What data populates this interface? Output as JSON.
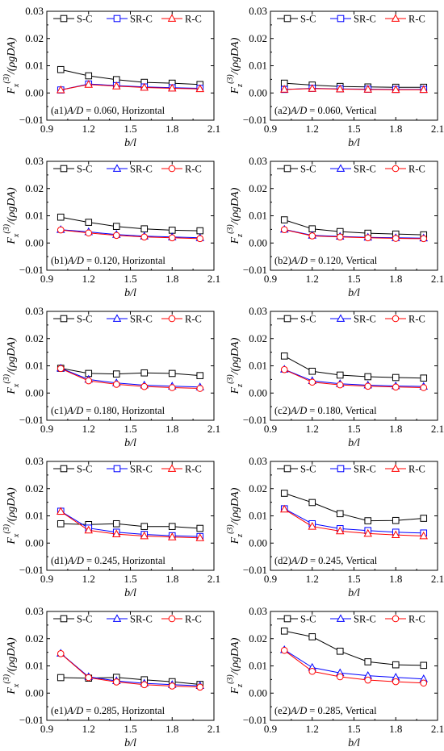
{
  "chart_data": [
    {
      "id": "a1",
      "type": "line",
      "caption_prefix": "(a1)",
      "ratio_label": "A/D",
      "ratio_value": "= 0.060,",
      "direction": "Horizontal",
      "component": "x",
      "xlabel": "b/l",
      "ylabel_main": "F",
      "ylabel_sup": "(3)",
      "ylabel_tail": "/(ρgDA)",
      "xlim": [
        0.9,
        2.1
      ],
      "ylim": [
        -0.01,
        0.03
      ],
      "xticks": [
        "0.9",
        "1.2",
        "1.5",
        "1.8",
        "2.1"
      ],
      "yticks": [
        "−0.01",
        "0.00",
        "0.01",
        "0.02",
        "0.03"
      ],
      "x": [
        1.0,
        1.2,
        1.4,
        1.6,
        1.8,
        2.0
      ],
      "series": [
        {
          "name": "S-C",
          "color": "#000000",
          "marker": "square",
          "values": [
            0.0086,
            0.0063,
            0.0049,
            0.0039,
            0.0036,
            0.0031
          ]
        },
        {
          "name": "SR-C",
          "color": "#0000ff",
          "marker": "square",
          "values": [
            0.0011,
            0.0033,
            0.0027,
            0.0022,
            0.0019,
            0.0017
          ]
        },
        {
          "name": "R-C",
          "color": "#ff0000",
          "marker": "triangle",
          "values": [
            0.0011,
            0.0031,
            0.0025,
            0.002,
            0.0017,
            0.0015
          ]
        }
      ]
    },
    {
      "id": "a2",
      "type": "line",
      "caption_prefix": "(a2)",
      "ratio_label": "A/D",
      "ratio_value": "= 0.060,",
      "direction": "Vertical",
      "component": "z",
      "xlabel": "b/l",
      "ylabel_main": "F",
      "ylabel_sup": "(3)",
      "ylabel_tail": "/(ρgDA)",
      "xlim": [
        0.9,
        2.1
      ],
      "ylim": [
        -0.01,
        0.03
      ],
      "xticks": [
        "0.9",
        "1.2",
        "1.5",
        "1.8",
        "2.1"
      ],
      "yticks": [
        "−0.01",
        "0.00",
        "0.01",
        "0.02",
        "0.03"
      ],
      "x": [
        1.0,
        1.2,
        1.4,
        1.6,
        1.8,
        2.0
      ],
      "series": [
        {
          "name": "S-C",
          "color": "#000000",
          "marker": "square",
          "values": [
            0.0036,
            0.0029,
            0.0024,
            0.0022,
            0.0021,
            0.0021
          ]
        },
        {
          "name": "SR-C",
          "color": "#0000ff",
          "marker": "square",
          "values": [
            0.0013,
            0.0017,
            0.0015,
            0.0014,
            0.0013,
            0.0013
          ]
        },
        {
          "name": "R-C",
          "color": "#ff0000",
          "marker": "triangle",
          "values": [
            0.0013,
            0.0016,
            0.0014,
            0.0013,
            0.0012,
            0.0012
          ]
        }
      ]
    },
    {
      "id": "b1",
      "type": "line",
      "caption_prefix": "(b1)",
      "ratio_label": "A/D",
      "ratio_value": "= 0.120,",
      "direction": "Horizontal",
      "component": "x",
      "xlabel": "b/l",
      "ylabel_main": "F",
      "ylabel_sup": "(3)",
      "ylabel_tail": "/(ρgDA)",
      "xlim": [
        0.9,
        2.1
      ],
      "ylim": [
        -0.01,
        0.03
      ],
      "xticks": [
        "0.9",
        "1.2",
        "1.5",
        "1.8",
        "2.1"
      ],
      "yticks": [
        "−0.01",
        "0.00",
        "0.01",
        "0.02",
        "0.03"
      ],
      "x": [
        1.0,
        1.2,
        1.4,
        1.6,
        1.8,
        2.0
      ],
      "series": [
        {
          "name": "S-C",
          "color": "#000000",
          "marker": "square",
          "values": [
            0.0095,
            0.0076,
            0.0061,
            0.0052,
            0.0047,
            0.0045
          ]
        },
        {
          "name": "SR-C",
          "color": "#0000ff",
          "marker": "triangle",
          "values": [
            0.0049,
            0.0041,
            0.0031,
            0.0025,
            0.0022,
            0.0019
          ]
        },
        {
          "name": "R-C",
          "color": "#ff0000",
          "marker": "circle",
          "values": [
            0.0048,
            0.0037,
            0.0028,
            0.0022,
            0.0019,
            0.0016
          ]
        }
      ]
    },
    {
      "id": "b2",
      "type": "line",
      "caption_prefix": "(b2)",
      "ratio_label": "A/D",
      "ratio_value": "= 0.120,",
      "direction": "Vertical",
      "component": "z",
      "xlabel": "b/l",
      "ylabel_main": "F",
      "ylabel_sup": "(3)",
      "ylabel_tail": "/(ρgDA)",
      "xlim": [
        0.9,
        2.1
      ],
      "ylim": [
        -0.01,
        0.03
      ],
      "xticks": [
        "0.9",
        "1.2",
        "1.5",
        "1.8",
        "2.1"
      ],
      "yticks": [
        "−0.01",
        "0.00",
        "0.01",
        "0.02",
        "0.03"
      ],
      "x": [
        1.0,
        1.2,
        1.4,
        1.6,
        1.8,
        2.0
      ],
      "series": [
        {
          "name": "S-C",
          "color": "#000000",
          "marker": "square",
          "values": [
            0.0085,
            0.0052,
            0.0042,
            0.0036,
            0.0033,
            0.003
          ]
        },
        {
          "name": "SR-C",
          "color": "#0000ff",
          "marker": "triangle",
          "values": [
            0.005,
            0.0028,
            0.0024,
            0.0021,
            0.0019,
            0.0018
          ]
        },
        {
          "name": "R-C",
          "color": "#ff0000",
          "marker": "circle",
          "values": [
            0.0049,
            0.0026,
            0.0022,
            0.0019,
            0.0017,
            0.0016
          ]
        }
      ]
    },
    {
      "id": "c1",
      "type": "line",
      "caption_prefix": "(c1)",
      "ratio_label": "A/D",
      "ratio_value": "= 0.180,",
      "direction": "Horizontal",
      "component": "x",
      "xlabel": "b/l",
      "ylabel_main": "F",
      "ylabel_sup": "(3)",
      "ylabel_tail": "/(ρgDA)",
      "xlim": [
        0.9,
        2.1
      ],
      "ylim": [
        -0.01,
        0.03
      ],
      "xticks": [
        "0.9",
        "1.2",
        "1.5",
        "1.8",
        "2.1"
      ],
      "yticks": [
        "−0.01",
        "0.00",
        "0.01",
        "0.02",
        "0.03"
      ],
      "x": [
        1.0,
        1.2,
        1.4,
        1.6,
        1.8,
        2.0
      ],
      "series": [
        {
          "name": "S-C",
          "color": "#000000",
          "marker": "square",
          "values": [
            0.0091,
            0.0072,
            0.007,
            0.0074,
            0.0072,
            0.0064
          ]
        },
        {
          "name": "SR-C",
          "color": "#0000ff",
          "marker": "triangle",
          "values": [
            0.0091,
            0.005,
            0.0037,
            0.0029,
            0.0025,
            0.0022
          ]
        },
        {
          "name": "R-C",
          "color": "#ff0000",
          "marker": "circle",
          "values": [
            0.009,
            0.0045,
            0.0032,
            0.0024,
            0.002,
            0.0017
          ]
        }
      ]
    },
    {
      "id": "c2",
      "type": "line",
      "caption_prefix": "(c2)",
      "ratio_label": "A/D",
      "ratio_value": "= 0.180,",
      "direction": "Vertical",
      "component": "z",
      "xlabel": "b/l",
      "ylabel_main": "F",
      "ylabel_sup": "(3)",
      "ylabel_tail": "/(ρgDA)",
      "xlim": [
        0.9,
        2.1
      ],
      "ylim": [
        -0.01,
        0.03
      ],
      "xticks": [
        "0.9",
        "1.2",
        "1.5",
        "1.8",
        "2.1"
      ],
      "yticks": [
        "−0.01",
        "0.00",
        "0.01",
        "0.02",
        "0.03"
      ],
      "x": [
        1.0,
        1.2,
        1.4,
        1.6,
        1.8,
        2.0
      ],
      "series": [
        {
          "name": "S-C",
          "color": "#000000",
          "marker": "square",
          "values": [
            0.0136,
            0.008,
            0.0066,
            0.006,
            0.0057,
            0.0055
          ]
        },
        {
          "name": "SR-C",
          "color": "#0000ff",
          "marker": "triangle",
          "values": [
            0.0087,
            0.0045,
            0.0034,
            0.0029,
            0.0026,
            0.0024
          ]
        },
        {
          "name": "R-C",
          "color": "#ff0000",
          "marker": "circle",
          "values": [
            0.0086,
            0.004,
            0.003,
            0.0025,
            0.0022,
            0.002
          ]
        }
      ]
    },
    {
      "id": "d1",
      "type": "line",
      "caption_prefix": "(d1)",
      "ratio_label": "A/D",
      "ratio_value": "= 0.245,",
      "direction": "Horizontal",
      "component": "x",
      "xlabel": "b/l",
      "ylabel_main": "F",
      "ylabel_sup": "(3)",
      "ylabel_tail": "/(ρgDA)",
      "xlim": [
        0.9,
        2.1
      ],
      "ylim": [
        -0.01,
        0.03
      ],
      "xticks": [
        "0.9",
        "1.2",
        "1.5",
        "1.8",
        "2.1"
      ],
      "yticks": [
        "−0.01",
        "0.00",
        "0.01",
        "0.02",
        "0.03"
      ],
      "x": [
        1.0,
        1.2,
        1.4,
        1.6,
        1.8,
        2.0
      ],
      "series": [
        {
          "name": "S-C",
          "color": "#000000",
          "marker": "square",
          "values": [
            0.0071,
            0.0068,
            0.0071,
            0.0061,
            0.0061,
            0.0054
          ]
        },
        {
          "name": "SR-C",
          "color": "#0000ff",
          "marker": "square",
          "values": [
            0.0117,
            0.0055,
            0.004,
            0.0032,
            0.0027,
            0.0024
          ]
        },
        {
          "name": "R-C",
          "color": "#ff0000",
          "marker": "triangle",
          "values": [
            0.0116,
            0.0047,
            0.0033,
            0.0026,
            0.0022,
            0.0019
          ]
        }
      ]
    },
    {
      "id": "d2",
      "type": "line",
      "caption_prefix": "(d2)",
      "ratio_label": "A/D",
      "ratio_value": "= 0.245,",
      "direction": "Vertical",
      "component": "z",
      "xlabel": "b/l",
      "ylabel_main": "F",
      "ylabel_sup": "(3)",
      "ylabel_tail": "/(ρgDA)",
      "xlim": [
        0.9,
        2.1
      ],
      "ylim": [
        -0.01,
        0.03
      ],
      "xticks": [
        "0.9",
        "1.2",
        "1.5",
        "1.8",
        "2.1"
      ],
      "yticks": [
        "−0.01",
        "0.00",
        "0.01",
        "0.02",
        "0.03"
      ],
      "x": [
        1.0,
        1.2,
        1.4,
        1.6,
        1.8,
        2.0
      ],
      "series": [
        {
          "name": "S-C",
          "color": "#000000",
          "marker": "square",
          "values": [
            0.0183,
            0.0149,
            0.0108,
            0.0082,
            0.0083,
            0.0091
          ]
        },
        {
          "name": "SR-C",
          "color": "#0000ff",
          "marker": "square",
          "values": [
            0.0126,
            0.0071,
            0.0053,
            0.0046,
            0.004,
            0.0037
          ]
        },
        {
          "name": "R-C",
          "color": "#ff0000",
          "marker": "triangle",
          "values": [
            0.0124,
            0.0061,
            0.0044,
            0.0035,
            0.003,
            0.0026
          ]
        }
      ]
    },
    {
      "id": "e1",
      "type": "line",
      "caption_prefix": "(e1)",
      "ratio_label": "A/D",
      "ratio_value": "= 0.285,",
      "direction": "Horizontal",
      "component": "x",
      "xlabel": "b/l",
      "ylabel_main": "F",
      "ylabel_sup": "(3)",
      "ylabel_tail": "/(ρgDA)",
      "xlim": [
        0.9,
        2.1
      ],
      "ylim": [
        -0.01,
        0.03
      ],
      "xticks": [
        "0.9",
        "1.2",
        "1.5",
        "1.8",
        "2.1"
      ],
      "yticks": [
        "−0.01",
        "0.00",
        "0.01",
        "0.02",
        "0.03"
      ],
      "x": [
        1.0,
        1.2,
        1.4,
        1.6,
        1.8,
        2.0
      ],
      "series": [
        {
          "name": "S-C",
          "color": "#000000",
          "marker": "square",
          "values": [
            0.0057,
            0.0055,
            0.0058,
            0.0049,
            0.0042,
            0.0032
          ]
        },
        {
          "name": "SR-C",
          "color": "#0000ff",
          "marker": "triangle",
          "values": [
            0.0146,
            0.006,
            0.0045,
            0.0036,
            0.0031,
            0.0027
          ]
        },
        {
          "name": "R-C",
          "color": "#ff0000",
          "marker": "circle",
          "values": [
            0.0145,
            0.0057,
            0.0041,
            0.0031,
            0.0026,
            0.0022
          ]
        }
      ]
    },
    {
      "id": "e2",
      "type": "line",
      "caption_prefix": "(e2)",
      "ratio_label": "A/D",
      "ratio_value": "= 0.285,",
      "direction": "Vertical",
      "component": "z",
      "xlabel": "b/l",
      "ylabel_main": "F",
      "ylabel_sup": "(3)",
      "ylabel_tail": "/(ρgDA)",
      "xlim": [
        0.9,
        2.1
      ],
      "ylim": [
        -0.01,
        0.03
      ],
      "xticks": [
        "0.9",
        "1.2",
        "1.5",
        "1.8",
        "2.1"
      ],
      "yticks": [
        "−0.01",
        "0.00",
        "0.01",
        "0.02",
        "0.03"
      ],
      "x": [
        1.0,
        1.2,
        1.4,
        1.6,
        1.8,
        2.0
      ],
      "series": [
        {
          "name": "S-C",
          "color": "#000000",
          "marker": "square",
          "values": [
            0.0228,
            0.0207,
            0.0154,
            0.0115,
            0.0104,
            0.0102
          ]
        },
        {
          "name": "SR-C",
          "color": "#0000ff",
          "marker": "triangle",
          "values": [
            0.0159,
            0.0094,
            0.0074,
            0.0064,
            0.0058,
            0.0052
          ]
        },
        {
          "name": "R-C",
          "color": "#ff0000",
          "marker": "circle",
          "values": [
            0.0157,
            0.008,
            0.006,
            0.0048,
            0.0042,
            0.0037
          ]
        }
      ]
    }
  ]
}
